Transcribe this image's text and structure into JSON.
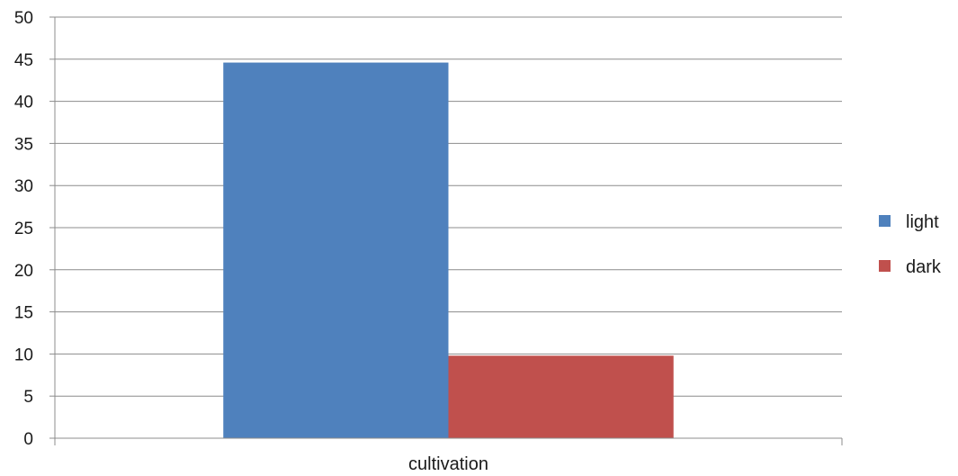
{
  "chart_data": {
    "type": "bar",
    "categories": [
      "cultivation"
    ],
    "series": [
      {
        "name": "light",
        "values": [
          44.6
        ],
        "color": "#4F81BD"
      },
      {
        "name": "dark",
        "values": [
          9.8
        ],
        "color": "#C0504D"
      }
    ],
    "title": "",
    "xlabel": "",
    "ylabel": "",
    "ylim": [
      0,
      50
    ],
    "yticks": [
      0,
      5,
      10,
      15,
      20,
      25,
      30,
      35,
      40,
      45,
      50
    ],
    "grid": true,
    "legend_position": "right"
  }
}
